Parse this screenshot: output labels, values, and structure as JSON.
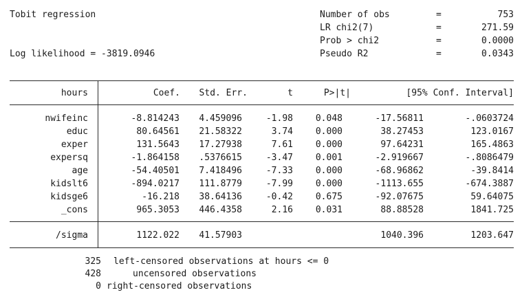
{
  "header": {
    "title": "Tobit regression",
    "loglik_label": "Log likelihood = -3819.0946",
    "stats": [
      {
        "label": "Number of obs",
        "eq": "=",
        "value": "753"
      },
      {
        "label": "LR chi2(7)",
        "eq": "=",
        "value": "271.59"
      },
      {
        "label": "Prob > chi2",
        "eq": "=",
        "value": "0.0000"
      },
      {
        "label": "Pseudo R2",
        "eq": "=",
        "value": "0.0343"
      }
    ]
  },
  "table": {
    "columns": [
      "hours",
      "Coef.",
      "Std. Err.",
      "t",
      "P>|t|",
      "[95% Conf. Interval]"
    ],
    "rows": [
      [
        "nwifeinc",
        "-8.814243",
        "4.459096",
        "-1.98",
        "0.048",
        "-17.56811",
        "-.0603724"
      ],
      [
        "educ",
        "80.64561",
        "21.58322",
        "3.74",
        "0.000",
        "38.27453",
        "123.0167"
      ],
      [
        "exper",
        "131.5643",
        "17.27938",
        "7.61",
        "0.000",
        "97.64231",
        "165.4863"
      ],
      [
        "expersq",
        "-1.864158",
        ".5376615",
        "-3.47",
        "0.001",
        "-2.919667",
        "-.8086479"
      ],
      [
        "age",
        "-54.40501",
        "7.418496",
        "-7.33",
        "0.000",
        "-68.96862",
        "-39.8414"
      ],
      [
        "kidslt6",
        "-894.0217",
        "111.8779",
        "-7.99",
        "0.000",
        "-1113.655",
        "-674.3887"
      ],
      [
        "kidsge6",
        "-16.218",
        "38.64136",
        "-0.42",
        "0.675",
        "-92.07675",
        "59.64075"
      ],
      [
        "_cons",
        "965.3053",
        "446.4358",
        "2.16",
        "0.031",
        "88.88528",
        "1841.725"
      ]
    ],
    "sigma": [
      "/sigma",
      "1122.022",
      "41.57903",
      "",
      "",
      "1040.396",
      "1203.647"
    ]
  },
  "footer": [
    {
      "count": "325",
      "text": "left-censored observations at hours <= 0"
    },
    {
      "count": "428",
      "text": "uncensored observations"
    },
    {
      "count": "0",
      "text": "right-censored observations"
    }
  ]
}
